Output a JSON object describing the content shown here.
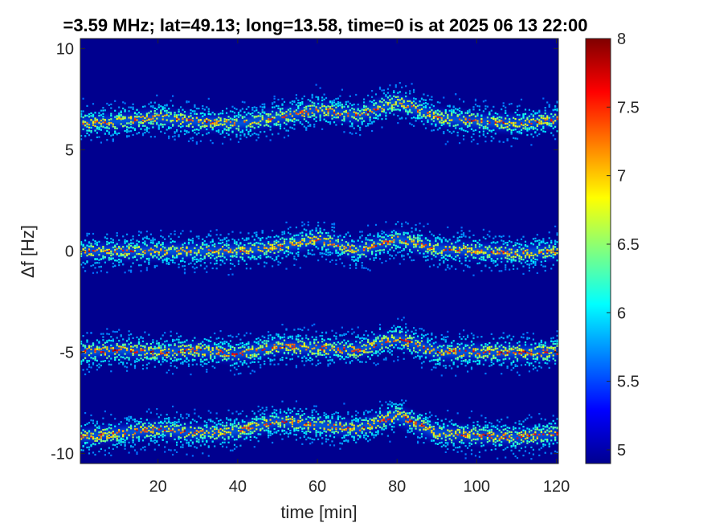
{
  "chart_data": {
    "type": "heatmap",
    "title": "=3.59 MHz;  lat=49.13; long=13.58, time=0 is at 2025 06 13 22:00",
    "xlabel": "time [min]",
    "ylabel": "Δf [Hz]",
    "xlim": [
      0.5,
      120.5
    ],
    "ylim": [
      -10.5,
      10.5
    ],
    "x_ticks": [
      20,
      40,
      60,
      80,
      100,
      120
    ],
    "x_tick_labels": [
      "20",
      "40",
      "60",
      "80",
      "100",
      "120"
    ],
    "y_ticks": [
      10,
      5,
      0,
      -5,
      -10
    ],
    "y_tick_labels": [
      "10",
      "5",
      "0",
      "-5",
      "-10"
    ],
    "colorbar": {
      "colormap": "jet",
      "clim": [
        4.9,
        8
      ],
      "ticks": [
        8,
        7.5,
        7,
        6.5,
        6,
        5.5,
        5
      ],
      "tick_labels": [
        "8",
        "7.5",
        "7",
        "6.5",
        "6",
        "5.5",
        "5"
      ]
    },
    "background_color": "#00008f",
    "series": [
      {
        "x": [
          0,
          10,
          20,
          30,
          40,
          50,
          60,
          70,
          80,
          90,
          100,
          110,
          120
        ],
        "y": [
          6.3,
          6.4,
          6.6,
          6.4,
          6.3,
          6.6,
          7.0,
          6.7,
          7.4,
          6.6,
          6.4,
          6.3,
          6.5
        ]
      },
      {
        "x": [
          0,
          10,
          20,
          30,
          40,
          50,
          60,
          70,
          80,
          90,
          100,
          110,
          120
        ],
        "y": [
          0.0,
          0.0,
          0.0,
          0.0,
          0.0,
          0.2,
          0.6,
          0.0,
          0.6,
          0.1,
          0.0,
          -0.1,
          0.0
        ]
      },
      {
        "x": [
          0,
          10,
          20,
          30,
          40,
          50,
          60,
          70,
          80,
          90,
          100,
          110,
          120
        ],
        "y": [
          -5.0,
          -4.9,
          -5.0,
          -4.9,
          -5.1,
          -4.7,
          -4.8,
          -4.9,
          -4.3,
          -5.0,
          -5.0,
          -5.0,
          -5.0
        ]
      },
      {
        "x": [
          0,
          10,
          20,
          30,
          40,
          50,
          60,
          70,
          80,
          90,
          100,
          110,
          120
        ],
        "y": [
          -9.2,
          -9.0,
          -8.8,
          -9.0,
          -8.9,
          -8.4,
          -8.6,
          -8.8,
          -8.1,
          -9.0,
          -9.1,
          -9.2,
          -9.0
        ]
      }
    ]
  }
}
